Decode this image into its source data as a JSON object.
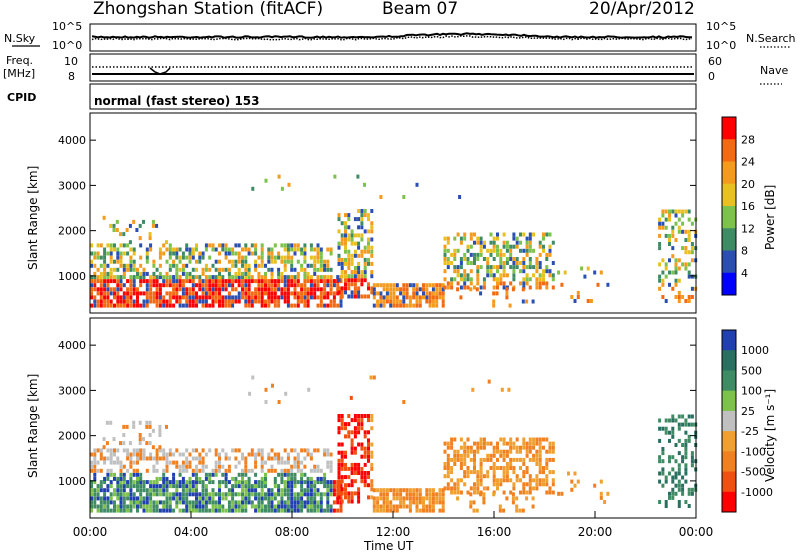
{
  "header": {
    "station": "Zhongshan Station (fitACF)",
    "beam": "Beam 07",
    "date": "20/Apr/2012"
  },
  "mini_panels": {
    "sky_label": "N.Sky",
    "search_label": "N.Search",
    "freq_label_1": "Freq.",
    "freq_label_2": "[MHz]",
    "nave_label": "Nave",
    "cpid_label": "CPID",
    "cpid_value": "normal (fast stereo) 153",
    "sky_ticks": [
      "10^5",
      "10^0"
    ],
    "search_ticks": [
      "10^5",
      "10^0"
    ],
    "freq_ticks": [
      "10",
      "8"
    ],
    "nave_ticks": [
      "60",
      "0"
    ]
  },
  "chart_data": [
    {
      "type": "heatmap",
      "panel": "power",
      "xlabel": "",
      "ylabel": "Slant Range [km]",
      "ylim": [
        180,
        4600
      ],
      "y_ticks": [
        1000,
        2000,
        3000,
        4000
      ],
      "colorbar_label": "Power [dB]",
      "colorbar_ticks": [
        "4",
        "8",
        "12",
        "16",
        "20",
        "24",
        "28"
      ],
      "colors": [
        "#0000ff",
        "#2a4fb0",
        "#3f8b64",
        "#7dc24a",
        "#e8c020",
        "#f49b1e",
        "#f26a12",
        "#ff0000"
      ]
    },
    {
      "type": "heatmap",
      "panel": "velocity",
      "xlabel": "Time UT",
      "ylabel": "Slant Range [km]",
      "ylim": [
        180,
        4600
      ],
      "x_ticks": [
        "00:00",
        "04:00",
        "08:00",
        "12:00",
        "16:00",
        "20:00",
        "00:00"
      ],
      "y_ticks": [
        1000,
        2000,
        3000,
        4000
      ],
      "colorbar_label": "Velocity [m s⁻¹]",
      "colorbar_ticks": [
        "1000",
        "500",
        "100",
        "25",
        "-25",
        "-100",
        "-500",
        "-1000"
      ],
      "colors": [
        "#2040b0",
        "#2a7060",
        "#3f8b64",
        "#7dc24a",
        "#c0c0c0",
        "#f0a030",
        "#f08020",
        "#f05010",
        "#ff0000"
      ]
    }
  ]
}
